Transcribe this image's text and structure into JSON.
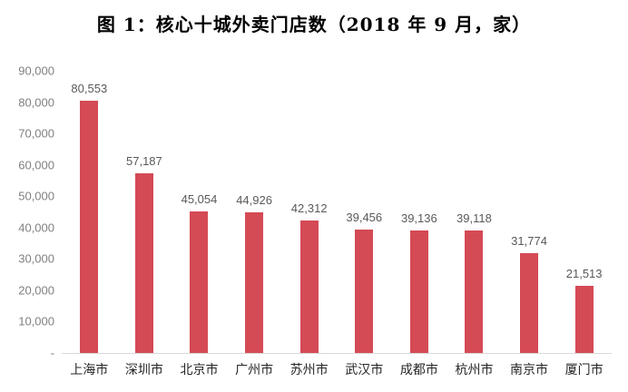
{
  "figure_title": "图 1：核心十城外卖门店数（2018 年 9 月，家）",
  "chart_data": {
    "type": "bar",
    "title": "图 1：核心十城外卖门店数（2018 年 9 月，家）",
    "categories": [
      "上海市",
      "深圳市",
      "北京市",
      "广州市",
      "苏州市",
      "武汉市",
      "成都市",
      "杭州市",
      "南京市",
      "厦门市"
    ],
    "values": [
      80553,
      57187,
      45054,
      44926,
      42312,
      39456,
      39136,
      39118,
      31774,
      21513
    ],
    "value_labels": [
      "80,553",
      "57,187",
      "45,054",
      "44,926",
      "42,312",
      "39,456",
      "39,136",
      "39,118",
      "31,774",
      "21,513"
    ],
    "xlabel": "",
    "ylabel": "",
    "ylim": [
      0,
      90000
    ],
    "y_ticks": [
      {
        "value": 90000,
        "label": "90,000"
      },
      {
        "value": 80000,
        "label": "80,000"
      },
      {
        "value": 70000,
        "label": "70,000"
      },
      {
        "value": 60000,
        "label": "60,000"
      },
      {
        "value": 50000,
        "label": "50,000"
      },
      {
        "value": 40000,
        "label": "40,000"
      },
      {
        "value": 30000,
        "label": "30,000"
      },
      {
        "value": 20000,
        "label": "20,000"
      },
      {
        "value": 10000,
        "label": "10,000"
      },
      {
        "value": 0,
        "label": "-"
      }
    ],
    "grid": false,
    "legend": null,
    "colors": {
      "bar": "#D44A55",
      "axis_line": "#D9D9D9",
      "value_label": "#595959",
      "tick_label": "#808080"
    }
  }
}
